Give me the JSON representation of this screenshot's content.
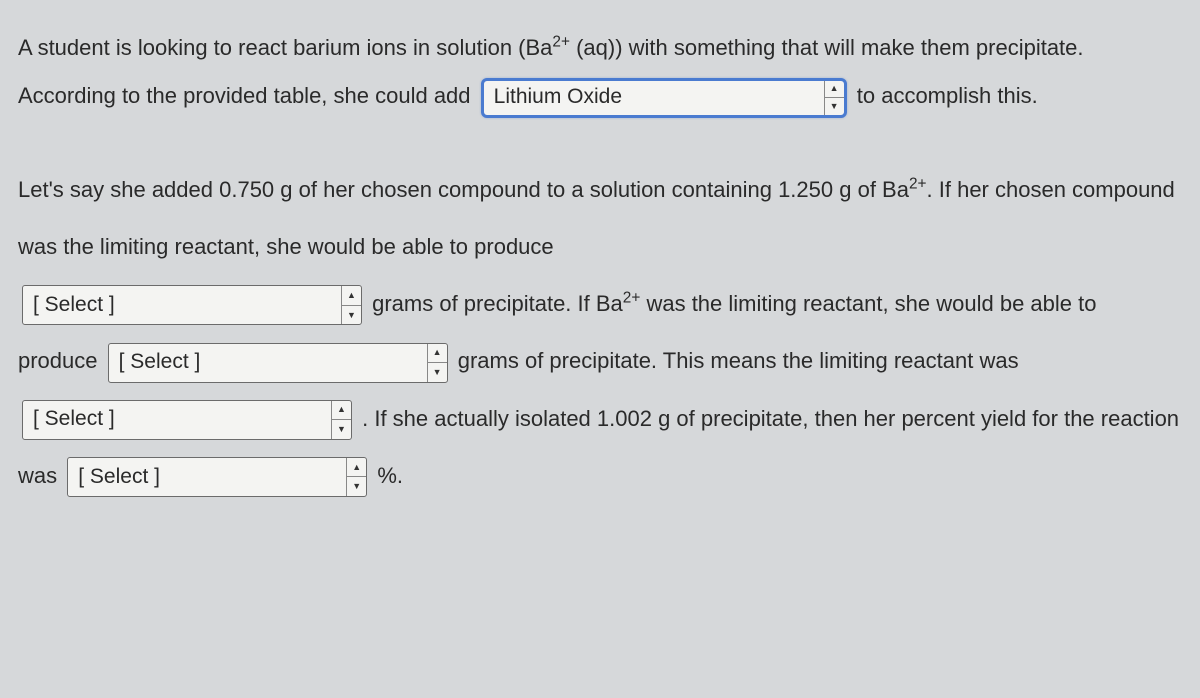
{
  "question": {
    "p1_a": "A student is looking to react barium ions in solution (Ba",
    "p1_sup1": "2+",
    "p1_b": " (aq)) with something that will make them precipitate. According to the provided table, she could add ",
    "p1_c": " to accomplish this.",
    "p2_a": "Let's say she added 0.750 g of her chosen compound to a solution containing 1.250 g of Ba",
    "p2_sup1": "2+",
    "p2_b": ". If her chosen compound was the limiting reactant, she would be able to produce ",
    "p2_c": " grams of precipitate. If Ba",
    "p2_sup2": "2+",
    "p2_d": " was the limiting reactant, she would be able to produce ",
    "p2_e": " grams of precipitate. This means the limiting reactant was ",
    "p2_f": " . If she actually isolated 1.002 g of precipitate, then her percent yield for the reaction was ",
    "p2_g": " %."
  },
  "selects": {
    "compound": "Lithium Oxide",
    "grams1": "[ Select ]",
    "grams2": "[ Select ]",
    "limiting": "[ Select ]",
    "yield": "[ Select ]"
  },
  "colors": {
    "bg": "#d6d8da",
    "text": "#2a2a2a",
    "selectBg": "#f4f4f2",
    "selectBorder": "#6b6b6b",
    "activeBorder": "#4a7bd0"
  }
}
